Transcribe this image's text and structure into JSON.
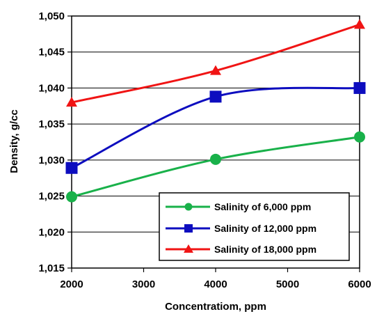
{
  "chart_data": {
    "type": "line",
    "title": "",
    "xlabel": "Concentratiom, ppm",
    "ylabel": "Density, g/cc",
    "x": [
      2000,
      4000,
      6000
    ],
    "x_ticks": [
      "2000",
      "3000",
      "4000",
      "5000",
      "6000"
    ],
    "y_ticks": [
      "1,015",
      "1,020",
      "1,025",
      "1,030",
      "1,035",
      "1,040",
      "1,045",
      "1,050"
    ],
    "xlim": [
      2000,
      6000
    ],
    "ylim": [
      1.015,
      1.05
    ],
    "grid": "horizontal",
    "legend_position": "bottom-right",
    "series": [
      {
        "name": "Salinity of 6,000 ppm",
        "values": [
          1.0249,
          1.0301,
          1.0332
        ],
        "color": "#19b14a",
        "marker": "circle"
      },
      {
        "name": "Salinity of 12,000 ppm",
        "values": [
          1.0289,
          1.0388,
          1.04
        ],
        "color": "#0d0dbf",
        "marker": "square"
      },
      {
        "name": "Salinity of 18,000 ppm",
        "values": [
          1.038,
          1.0424,
          1.0488
        ],
        "color": "#f01414",
        "marker": "triangle"
      }
    ]
  }
}
